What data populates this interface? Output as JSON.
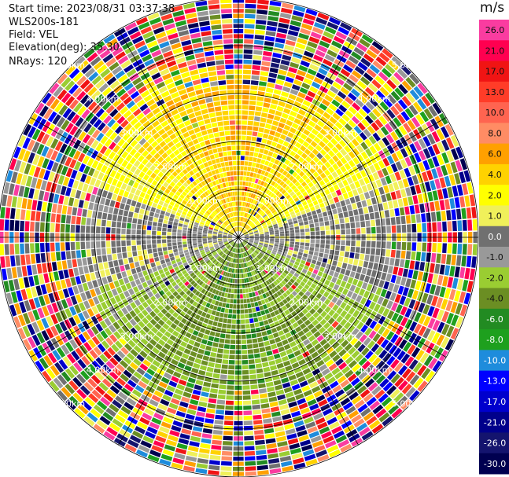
{
  "header": {
    "start_time": "Start time: 2023/08/31 03:37:38",
    "station": "WLS200s-181",
    "field": "Field: VEL",
    "elevation": "Elevation(deg): 35.30",
    "nrays": "NRays: 120"
  },
  "colorbar": {
    "unit": "m/s",
    "labels": [
      "26.0",
      "21.0",
      "17.0",
      "13.0",
      "10.0",
      "8.0",
      "6.0",
      "4.0",
      "2.0",
      "1.0",
      "0.0",
      "-1.0",
      "-2.0",
      "-4.0",
      "-6.0",
      "-8.0",
      "-10.0",
      "-13.0",
      "-17.0",
      "-21.0",
      "-26.0",
      "-30.0"
    ],
    "colors": [
      "#fa3ca0",
      "#ff0050",
      "#f01414",
      "#ff3c28",
      "#ff6450",
      "#ff8c64",
      "#ffa000",
      "#ffd200",
      "#ffff00",
      "#f0f05a",
      "#707070",
      "#999999",
      "#9acd32",
      "#6b8e23",
      "#228b22",
      "#1ea01e",
      "#1e8cdc",
      "#0000ff",
      "#0000cd",
      "#00008b",
      "#14146e",
      "#000050"
    ]
  },
  "chart_data": {
    "type": "heatmap",
    "title": "",
    "field": "VEL",
    "unit": "m/s",
    "n_rays": 120,
    "range_rings_km": [
      1.0,
      2.0,
      3.0,
      4.0,
      5.0
    ],
    "ring_labels": [
      "1.00km",
      "2.00km",
      "3.00km",
      "4.00km",
      "5.00km"
    ],
    "azimuth_spokes_deg": [
      0,
      30,
      60,
      90,
      120,
      150,
      180,
      210,
      240,
      270,
      300,
      330
    ],
    "max_range_km": 5.0,
    "velocity_pattern": {
      "north_sector": "positive, 2 to 6 m/s (yellow/orange) out to about 3 km",
      "south_sector": "negative, -2 to -6 m/s (green) out to about 3 km",
      "east_west": "near 0 m/s (gray)",
      "outer_ring": "noisy, full color range beyond about 3.5 km"
    }
  }
}
